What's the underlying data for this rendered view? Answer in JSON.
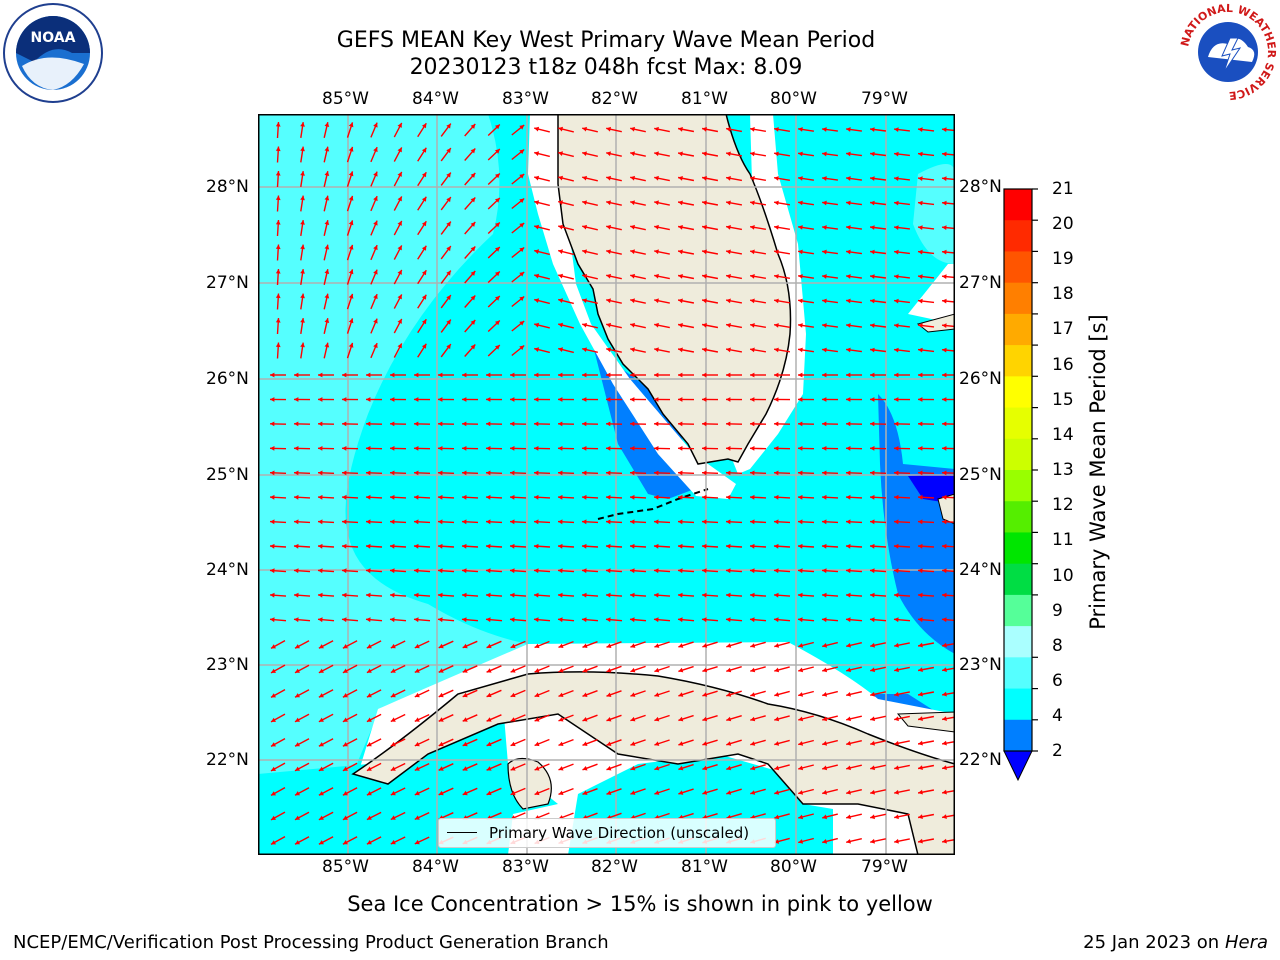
{
  "title_line1": "GEFS MEAN Key West Primary Wave Mean Period",
  "title_line2": "20230123 t18z 048h fcst   Max: 8.09",
  "lon_ticks": [
    "85°W",
    "84°W",
    "83°W",
    "82°W",
    "81°W",
    "80°W",
    "79°W"
  ],
  "lat_ticks": [
    "28°N",
    "27°N",
    "26°N",
    "25°N",
    "24°N",
    "23°N",
    "22°N"
  ],
  "legend_label": "Primary Wave Direction (unscaled)",
  "colorbar": {
    "label": "Primary Wave Mean Period [s]",
    "ticks": [
      "21",
      "20",
      "19",
      "18",
      "17",
      "16",
      "15",
      "14",
      "13",
      "12",
      "11",
      "10",
      "9",
      "8",
      "6",
      "4",
      "2"
    ],
    "colors": [
      "#ff0000",
      "#ff2a00",
      "#ff5500",
      "#ff7f00",
      "#ffaa00",
      "#ffd400",
      "#ffff00",
      "#e6ff00",
      "#ccff00",
      "#99ff00",
      "#55ee00",
      "#00e600",
      "#00dd44",
      "#55ff99",
      "#aaffff",
      "#55ffff",
      "#00ffff",
      "#007fff"
    ],
    "under_color": "#0000ff"
  },
  "sea_ice_note": "Sea Ice Concentration > 15% is shown in pink to yellow",
  "footer_left": "NCEP/EMC/Verification Post Processing Product Generation Branch",
  "footer_date": "25 Jan 2023 on",
  "footer_host": "Hera",
  "logos": {
    "noaa": "NOAA",
    "nws_ring": "NATIONAL WEATHER SERVICE"
  },
  "colors": {
    "land": "#efecdc",
    "ocean_main": "#00ffff",
    "ocean_light": "#55ffff",
    "ocean_dark": "#007fff",
    "ocean_darkest": "#0000ff",
    "arrow": "#ff0000",
    "grid": "#b0b0b0"
  }
}
